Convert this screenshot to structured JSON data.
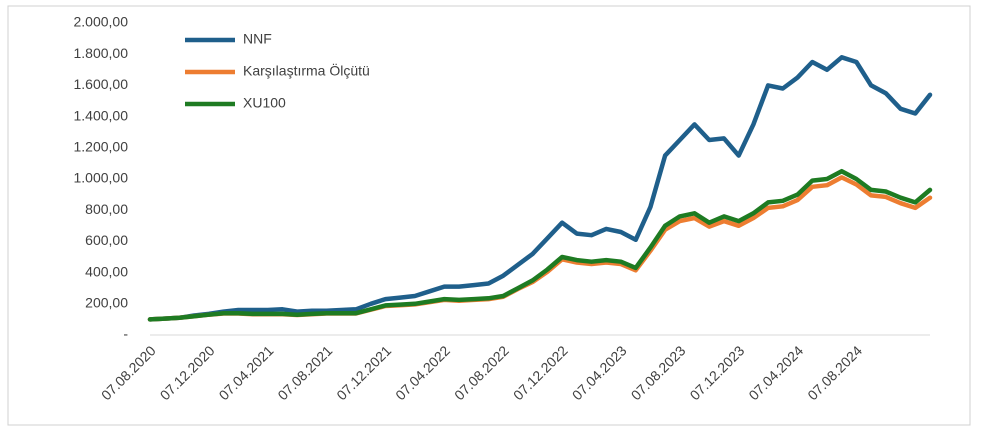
{
  "chart_data": {
    "type": "line",
    "categories": [
      "07.08.2020",
      null,
      null,
      null,
      "07.12.2020",
      null,
      null,
      null,
      "07.04.2021",
      null,
      null,
      null,
      "07.08.2021",
      null,
      null,
      null,
      "07.12.2021",
      null,
      null,
      null,
      "07.04.2022",
      null,
      null,
      null,
      "07.08.2022",
      null,
      null,
      null,
      "07.12.2022",
      null,
      null,
      null,
      "07.04.2023",
      null,
      null,
      null,
      "07.08.2023",
      null,
      null,
      null,
      "07.12.2023",
      null,
      null,
      null,
      "07.04.2024",
      null,
      null,
      null,
      "07.08.2024",
      null,
      null,
      null,
      null,
      null
    ],
    "series": [
      {
        "name": "NNF",
        "color": "#1f5f8b",
        "values": [
          100,
          105,
          110,
          125,
          135,
          150,
          160,
          160,
          160,
          165,
          150,
          155,
          155,
          160,
          165,
          200,
          230,
          240,
          250,
          280,
          310,
          310,
          320,
          330,
          380,
          450,
          520,
          620,
          720,
          650,
          640,
          680,
          660,
          610,
          820,
          1150,
          1250,
          1350,
          1250,
          1260,
          1150,
          1350,
          1600,
          1580,
          1650,
          1750,
          1700,
          1780,
          1750,
          1600,
          1550,
          1450,
          1420,
          1540
        ]
      },
      {
        "name": "Karşılaştırma Ölçütü",
        "color": "#ed7d31",
        "values": [
          100,
          105,
          110,
          120,
          130,
          138,
          138,
          133,
          133,
          133,
          128,
          133,
          138,
          138,
          138,
          162,
          186,
          191,
          196,
          210,
          225,
          220,
          225,
          230,
          245,
          295,
          340,
          405,
          485,
          465,
          455,
          465,
          455,
          415,
          540,
          675,
          730,
          750,
          695,
          730,
          700,
          750,
          815,
          825,
          865,
          950,
          960,
          1010,
          965,
          895,
          885,
          845,
          815,
          880
        ]
      },
      {
        "name": "XU100",
        "color": "#1e7b22",
        "values": [
          100,
          105,
          110,
          120,
          130,
          140,
          140,
          135,
          135,
          135,
          130,
          135,
          140,
          140,
          140,
          165,
          190,
          195,
          200,
          215,
          230,
          225,
          230,
          235,
          250,
          300,
          350,
          420,
          500,
          480,
          470,
          480,
          470,
          430,
          560,
          700,
          760,
          780,
          720,
          760,
          730,
          780,
          850,
          860,
          900,
          990,
          1000,
          1050,
          1000,
          930,
          920,
          880,
          850,
          930
        ]
      }
    ],
    "ylim": [
      0,
      2000
    ],
    "yticks": [
      {
        "value": 0,
        "label": "-"
      },
      {
        "value": 200,
        "label": "200,00"
      },
      {
        "value": 400,
        "label": "400,00"
      },
      {
        "value": 600,
        "label": "600,00"
      },
      {
        "value": 800,
        "label": "800,00"
      },
      {
        "value": 1000,
        "label": "1.000,00"
      },
      {
        "value": 1200,
        "label": "1.200,00"
      },
      {
        "value": 1400,
        "label": "1.400,00"
      },
      {
        "value": 1600,
        "label": "1.600,00"
      },
      {
        "value": 1800,
        "label": "1.800,00"
      },
      {
        "value": 2000,
        "label": "2.000,00"
      }
    ],
    "grid": false,
    "legend": "upper-left"
  }
}
